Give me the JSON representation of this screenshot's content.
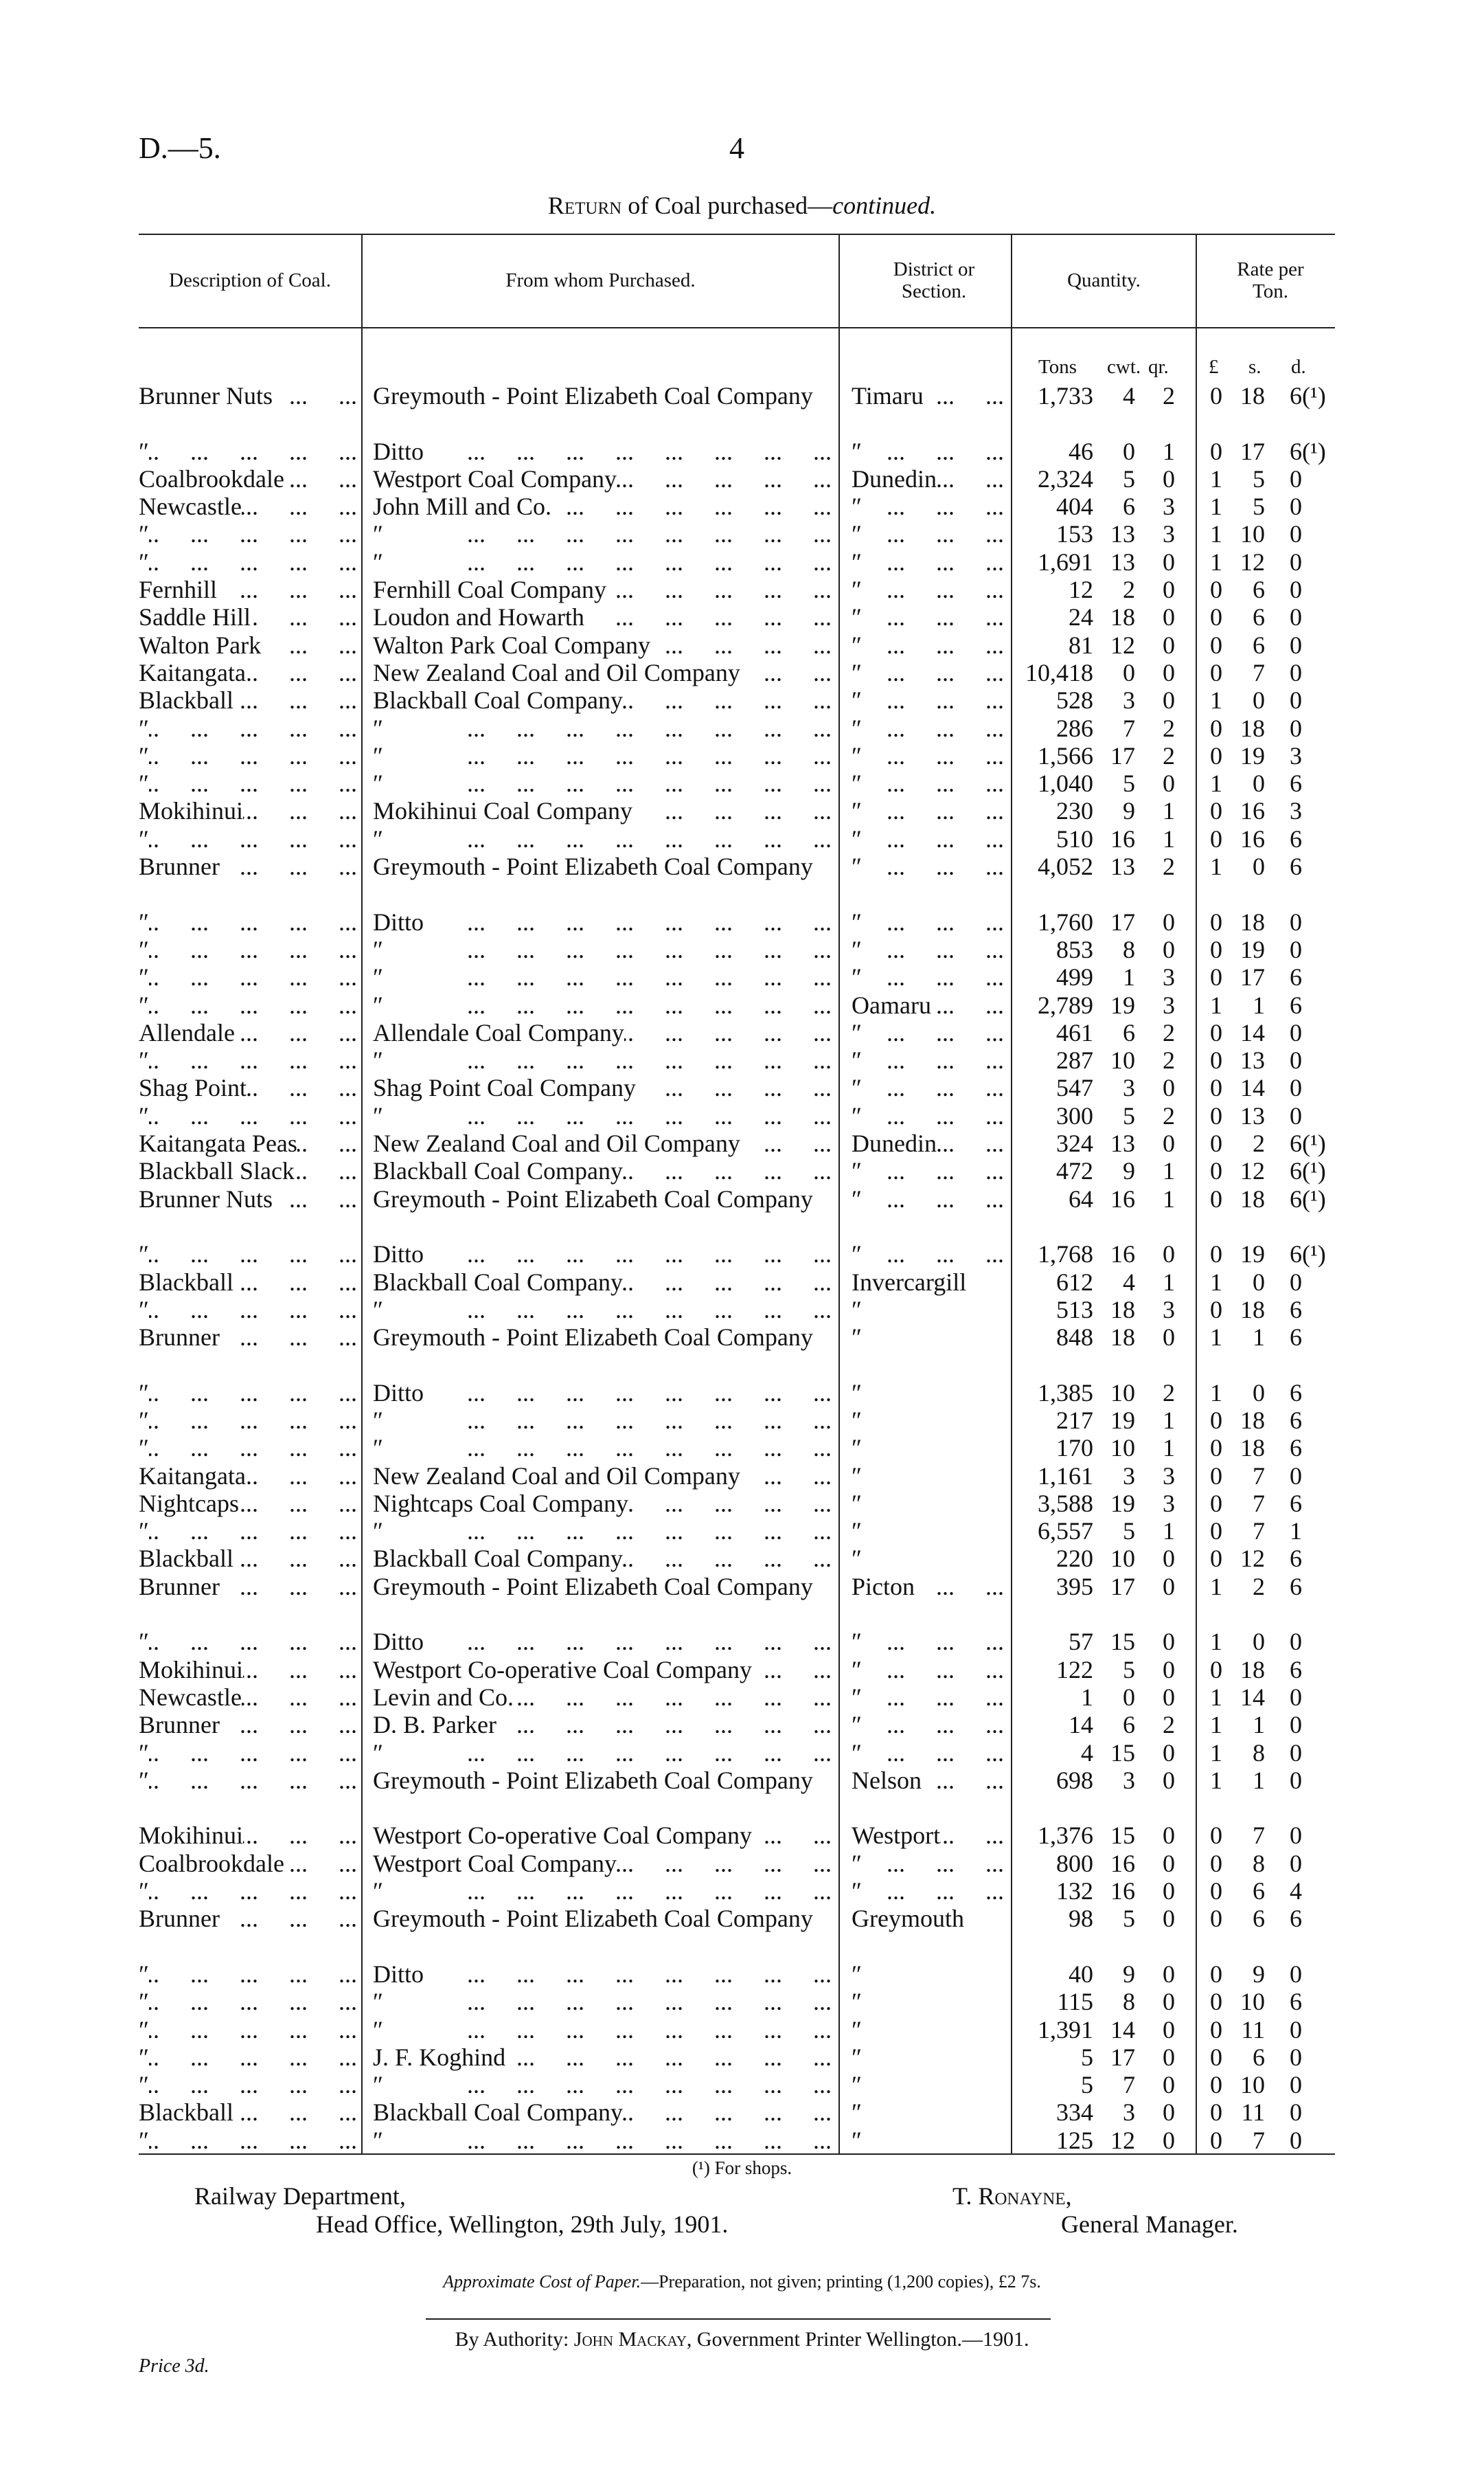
{
  "header": {
    "doc_ref": "D.—5.",
    "page_number": "4"
  },
  "title": {
    "prefix": "Return",
    "middle": " of Coal purchased—",
    "suffix": "continued."
  },
  "columns": {
    "description": "Description of Coal.",
    "purchased_from": "From whom Purchased.",
    "district": "District or Section.",
    "quantity": "Quantity.",
    "rate": "Rate per Ton.",
    "quantity_units": [
      "Tons",
      "cwt.",
      "qr."
    ],
    "rate_units": [
      "£",
      "s.",
      "d."
    ]
  },
  "ditto_mark": "″",
  "rows": [
    [
      "Brunner Nuts",
      "Greymouth - Point Elizabeth Coal Company",
      "Timaru",
      "1,733",
      "4",
      "2",
      "0",
      "18",
      "6(¹)"
    ],
    [
      "″",
      "Ditto",
      "″",
      "46",
      "0",
      "1",
      "0",
      "17",
      "6(¹)"
    ],
    [
      "Coalbrookdale",
      "Westport Coal Company",
      "Dunedin",
      "2,324",
      "5",
      "0",
      "1",
      "5",
      "0"
    ],
    [
      "Newcastle",
      "John Mill and Co.",
      "″",
      "404",
      "6",
      "3",
      "1",
      "5",
      "0"
    ],
    [
      "″",
      "″",
      "″",
      "153",
      "13",
      "3",
      "1",
      "10",
      "0"
    ],
    [
      "″",
      "″",
      "″",
      "1,691",
      "13",
      "0",
      "1",
      "12",
      "0"
    ],
    [
      "Fernhill",
      "Fernhill Coal Company",
      "″",
      "12",
      "2",
      "0",
      "0",
      "6",
      "0"
    ],
    [
      "Saddle Hill",
      "Loudon and Howarth",
      "″",
      "24",
      "18",
      "0",
      "0",
      "6",
      "0"
    ],
    [
      "Walton Park",
      "Walton Park Coal Company",
      "″",
      "81",
      "12",
      "0",
      "0",
      "6",
      "0"
    ],
    [
      "Kaitangata",
      "New Zealand Coal and Oil Company",
      "″",
      "10,418",
      "0",
      "0",
      "0",
      "7",
      "0"
    ],
    [
      "Blackball",
      "Blackball Coal Company",
      "″",
      "528",
      "3",
      "0",
      "1",
      "0",
      "0"
    ],
    [
      "″",
      "″",
      "″",
      "286",
      "7",
      "2",
      "0",
      "18",
      "0"
    ],
    [
      "″",
      "″",
      "″",
      "1,566",
      "17",
      "2",
      "0",
      "19",
      "3"
    ],
    [
      "″",
      "″",
      "″",
      "1,040",
      "5",
      "0",
      "1",
      "0",
      "6"
    ],
    [
      "Mokihinui",
      "Mokihinui Coal Company",
      "″",
      "230",
      "9",
      "1",
      "0",
      "16",
      "3"
    ],
    [
      "″",
      "″",
      "″",
      "510",
      "16",
      "1",
      "0",
      "16",
      "6"
    ],
    [
      "Brunner",
      "Greymouth - Point Elizabeth Coal Company",
      "″",
      "4,052",
      "13",
      "2",
      "1",
      "0",
      "6"
    ],
    [
      "″",
      "Ditto",
      "″",
      "1,760",
      "17",
      "0",
      "0",
      "18",
      "0"
    ],
    [
      "″",
      "″",
      "″",
      "853",
      "8",
      "0",
      "0",
      "19",
      "0"
    ],
    [
      "″",
      "″",
      "″",
      "499",
      "1",
      "3",
      "0",
      "17",
      "6"
    ],
    [
      "″",
      "″",
      "Oamaru",
      "2,789",
      "19",
      "3",
      "1",
      "1",
      "6"
    ],
    [
      "Allendale",
      "Allendale Coal Company",
      "″",
      "461",
      "6",
      "2",
      "0",
      "14",
      "0"
    ],
    [
      "″",
      "″",
      "″",
      "287",
      "10",
      "2",
      "0",
      "13",
      "0"
    ],
    [
      "Shag Point",
      "Shag Point Coal Company",
      "″",
      "547",
      "3",
      "0",
      "0",
      "14",
      "0"
    ],
    [
      "″",
      "″",
      "″",
      "300",
      "5",
      "2",
      "0",
      "13",
      "0"
    ],
    [
      "Kaitangata Peas",
      "New Zealand Coal and Oil Company",
      "Dunedin",
      "324",
      "13",
      "0",
      "0",
      "2",
      "6(¹)"
    ],
    [
      "Blackball Slack",
      "Blackball Coal Company",
      "″",
      "472",
      "9",
      "1",
      "0",
      "12",
      "6(¹)"
    ],
    [
      "Brunner Nuts",
      "Greymouth - Point Elizabeth Coal Company",
      "″",
      "64",
      "16",
      "1",
      "0",
      "18",
      "6(¹)"
    ],
    [
      "″",
      "Ditto",
      "″",
      "1,768",
      "16",
      "0",
      "0",
      "19",
      "6(¹)"
    ],
    [
      "Blackball",
      "Blackball Coal Company",
      "Invercargill",
      "612",
      "4",
      "1",
      "1",
      "0",
      "0"
    ],
    [
      "″",
      "″",
      "″",
      "513",
      "18",
      "3",
      "0",
      "18",
      "6"
    ],
    [
      "Brunner",
      "Greymouth - Point Elizabeth Coal Company",
      "″",
      "848",
      "18",
      "0",
      "1",
      "1",
      "6"
    ],
    [
      "″",
      "Ditto",
      "″",
      "1,385",
      "10",
      "2",
      "1",
      "0",
      "6"
    ],
    [
      "″",
      "″",
      "″",
      "217",
      "19",
      "1",
      "0",
      "18",
      "6"
    ],
    [
      "″",
      "″",
      "″",
      "170",
      "10",
      "1",
      "0",
      "18",
      "6"
    ],
    [
      "Kaitangata",
      "New Zealand Coal and Oil Company",
      "″",
      "1,161",
      "3",
      "3",
      "0",
      "7",
      "0"
    ],
    [
      "Nightcaps",
      "Nightcaps Coal Company",
      "″",
      "3,588",
      "19",
      "3",
      "0",
      "7",
      "6"
    ],
    [
      "″",
      "″",
      "″",
      "6,557",
      "5",
      "1",
      "0",
      "7",
      "1"
    ],
    [
      "Blackball",
      "Blackball Coal Company",
      "″",
      "220",
      "10",
      "0",
      "0",
      "12",
      "6"
    ],
    [
      "Brunner",
      "Greymouth - Point Elizabeth Coal Company",
      "Picton",
      "395",
      "17",
      "0",
      "1",
      "2",
      "6"
    ],
    [
      "″",
      "Ditto",
      "″",
      "57",
      "15",
      "0",
      "1",
      "0",
      "0"
    ],
    [
      "Mokihinui",
      "Westport Co-operative Coal Company",
      "″",
      "122",
      "5",
      "0",
      "0",
      "18",
      "6"
    ],
    [
      "Newcastle",
      "Levin and Co.",
      "″",
      "1",
      "0",
      "0",
      "1",
      "14",
      "0"
    ],
    [
      "Brunner",
      "D. B. Parker",
      "″",
      "14",
      "6",
      "2",
      "1",
      "1",
      "0"
    ],
    [
      "″",
      "″",
      "″",
      "4",
      "15",
      "0",
      "1",
      "8",
      "0"
    ],
    [
      "″",
      "Greymouth - Point Elizabeth Coal Company",
      "Nelson",
      "698",
      "3",
      "0",
      "1",
      "1",
      "0"
    ],
    [
      "Mokihinui",
      "Westport Co-operative Coal Company",
      "Westport",
      "1,376",
      "15",
      "0",
      "0",
      "7",
      "0"
    ],
    [
      "Coalbrookdale",
      "Westport Coal Company",
      "″",
      "800",
      "16",
      "0",
      "0",
      "8",
      "0"
    ],
    [
      "″",
      "″",
      "″",
      "132",
      "16",
      "0",
      "0",
      "6",
      "4"
    ],
    [
      "Brunner",
      "Greymouth - Point Elizabeth Coal Company",
      "Greymouth",
      "98",
      "5",
      "0",
      "0",
      "6",
      "6"
    ],
    [
      "″",
      "Ditto",
      "″",
      "40",
      "9",
      "0",
      "0",
      "9",
      "0"
    ],
    [
      "″",
      "″",
      "″",
      "115",
      "8",
      "0",
      "0",
      "10",
      "6"
    ],
    [
      "″",
      "″",
      "″",
      "1,391",
      "14",
      "0",
      "0",
      "11",
      "0"
    ],
    [
      "″",
      "J. F. Koghind",
      "″",
      "5",
      "17",
      "0",
      "0",
      "6",
      "0"
    ],
    [
      "″",
      "″",
      "″",
      "5",
      "7",
      "0",
      "0",
      "10",
      "0"
    ],
    [
      "Blackball",
      "Blackball Coal Company",
      "″",
      "334",
      "3",
      "0",
      "0",
      "11",
      "0"
    ],
    [
      "″",
      "″",
      "″",
      "125",
      "12",
      "0",
      "0",
      "7",
      "0"
    ]
  ],
  "footnote": "(¹) For shops.",
  "signature": {
    "dept_line1": "Railway Department,",
    "dept_line2": "Head Office, Wellington, 29th July, 1901.",
    "name_initial": "T. ",
    "name": "Ronayne,",
    "position": "General Manager."
  },
  "cost": {
    "label": "Approximate Cost of Paper.",
    "text": "—Preparation, not given; printing (1,200 copies), £2 7s."
  },
  "imprint": {
    "prefix": "By Authority: ",
    "printer": "John Mackay",
    "suffix": ", Government Printer Wellington.—1901."
  },
  "price": "Price 3d."
}
